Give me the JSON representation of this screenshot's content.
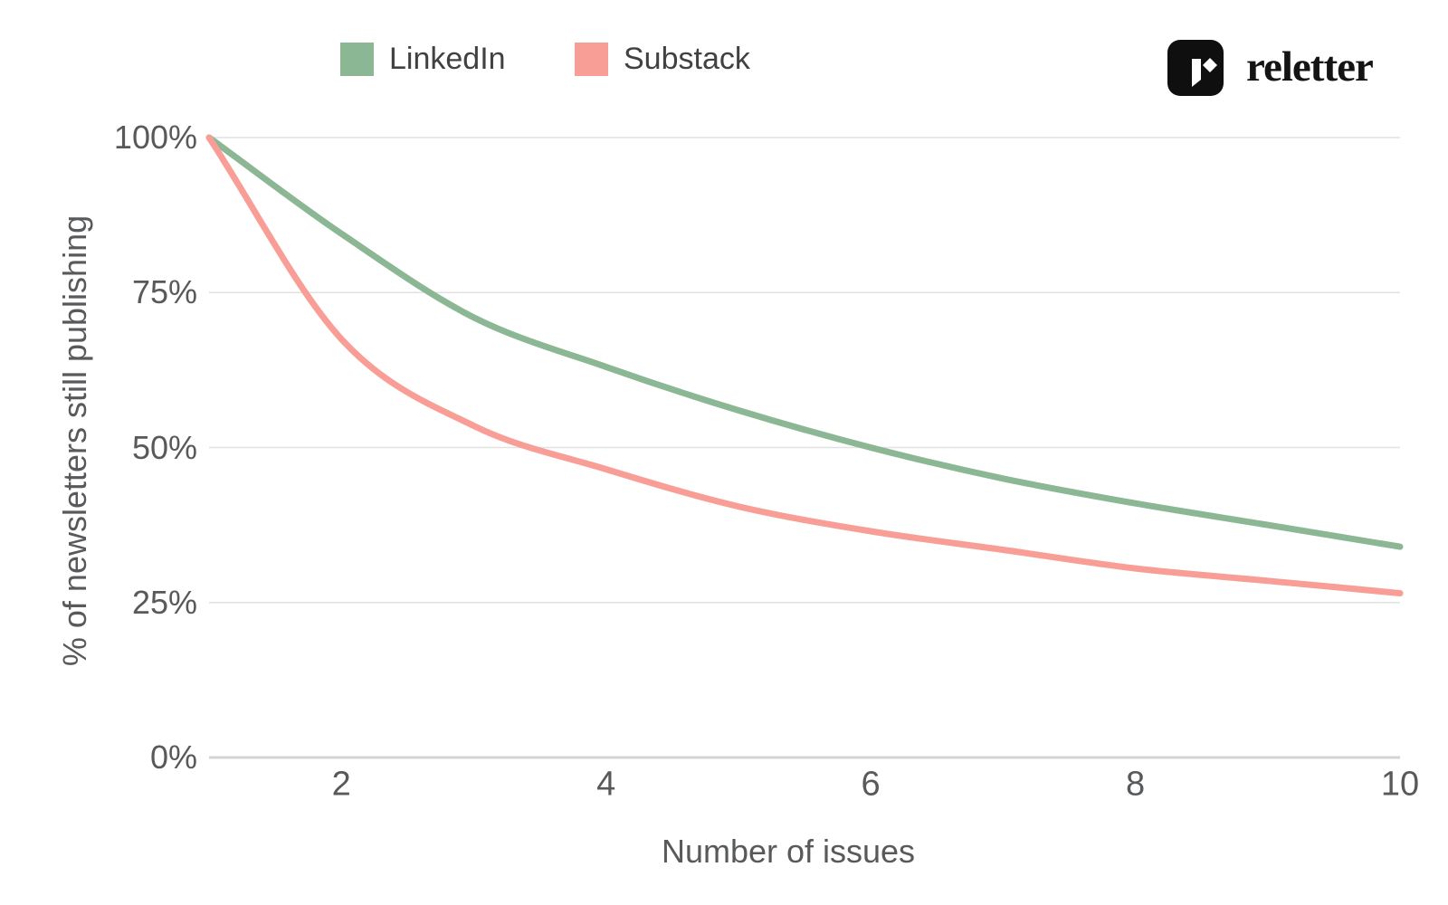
{
  "legend": {
    "items": [
      {
        "label": "LinkedIn",
        "color": "#8cb794"
      },
      {
        "label": "Substack",
        "color": "#f99e96"
      }
    ]
  },
  "brand": {
    "name": "reletter",
    "logo_icon": "reletter-mark-icon"
  },
  "chart_data": {
    "type": "line",
    "title": "",
    "xlabel": "Number of issues",
    "ylabel": "% of newsletters still publishing",
    "x": [
      1,
      2,
      3,
      4,
      5,
      6,
      7,
      8,
      9,
      10
    ],
    "series": [
      {
        "name": "LinkedIn",
        "color": "#8cb794",
        "values": [
          100,
          84.5,
          71,
          63,
          56,
          50,
          45,
          41,
          37.5,
          34
        ]
      },
      {
        "name": "Substack",
        "color": "#f99e96",
        "values": [
          100,
          67.5,
          53.5,
          46.5,
          40.5,
          36.5,
          33.5,
          30.5,
          28.5,
          26.5
        ]
      }
    ],
    "xticks": {
      "values": [
        2,
        4,
        6,
        8,
        10
      ],
      "labels": [
        "2",
        "4",
        "6",
        "8",
        "10"
      ]
    },
    "yticks": {
      "values": [
        0,
        25,
        50,
        75,
        100
      ],
      "labels": [
        "0%",
        "25%",
        "50%",
        "75%",
        "100%"
      ]
    },
    "xlim": [
      1,
      10
    ],
    "ylim": [
      0,
      100
    ],
    "grid": "horizontal",
    "legend_position": "top-left",
    "colors": {
      "background": "#ffffff",
      "grid": "#e2e2e2",
      "axis_line": "#d4d4d4",
      "tick_text": "#58595b",
      "axis_title_text": "#58595b",
      "legend_text": "#414141",
      "brand_text": "#141414",
      "logo_bg": "#0f0f0f"
    }
  }
}
